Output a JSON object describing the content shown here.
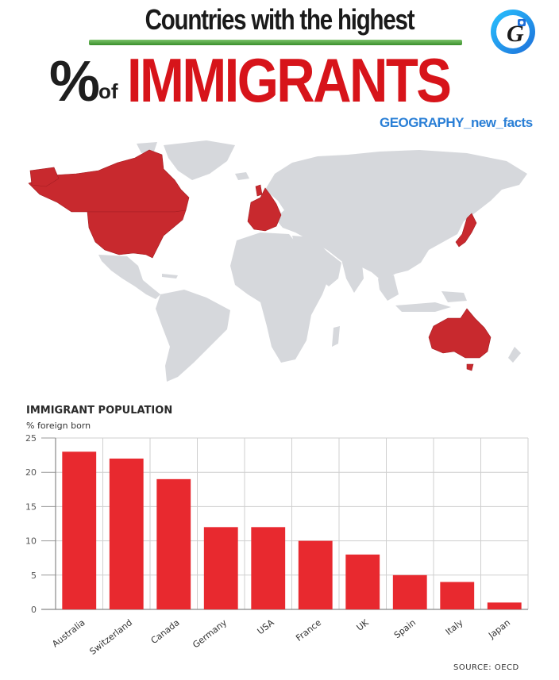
{
  "header": {
    "title_line1": "Countries with the highest",
    "title_pct": "%",
    "title_of": "of",
    "title_main": "IMMIGRANTS",
    "handle": "GEOGRAPHY_new_facts",
    "logo_letter": "G"
  },
  "map": {
    "highlight_color": "#c8292e",
    "land_color": "#d6d8dc",
    "highlighted_regions": [
      "Canada",
      "USA",
      "Western Europe",
      "Japan",
      "Australia"
    ]
  },
  "chart_data": {
    "type": "bar",
    "title": "IMMIGRANT POPULATION",
    "subtitle": "% foreign born",
    "categories": [
      "Australia",
      "Switzerland",
      "Canada",
      "Germany",
      "USA",
      "France",
      "UK",
      "Spain",
      "Italy",
      "Japan"
    ],
    "values": [
      23,
      22,
      19,
      12,
      12,
      10,
      8,
      5,
      4,
      1
    ],
    "ylim": [
      0,
      25
    ],
    "yticks": [
      0,
      5,
      10,
      15,
      20,
      25
    ],
    "grid": true,
    "bar_color": "#e8292f",
    "source": "SOURCE: OECD"
  }
}
